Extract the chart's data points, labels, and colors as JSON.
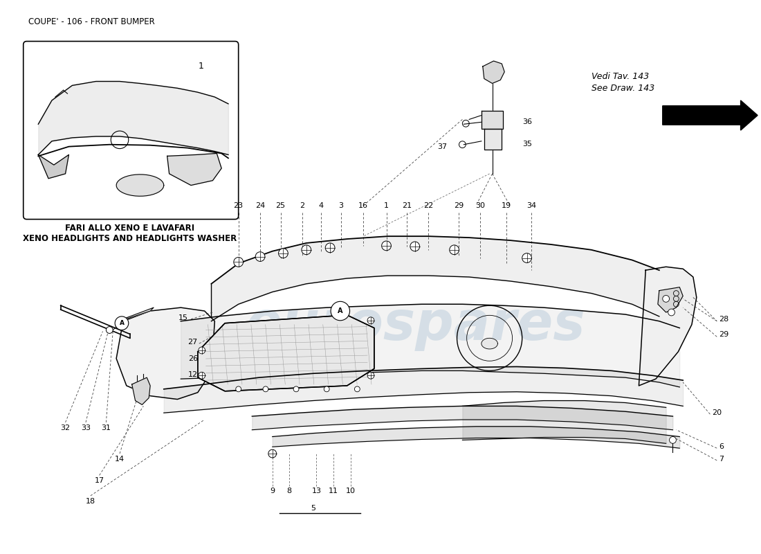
{
  "title": "COUPE' - 106 - FRONT BUMPER",
  "title_fontsize": 8.5,
  "background_color": "#ffffff",
  "watermark_text": "eurospares",
  "watermark_color": "#b8cfe0",
  "watermark_alpha": 0.45,
  "inset_label_it": "FARI ALLO XENO E LAVAFARI",
  "inset_label_en": "XENO HEADLIGHTS AND HEADLIGHTS WASHER",
  "reference_text_it": "Vedi Tav. 143",
  "reference_text_en": "See Draw. 143"
}
